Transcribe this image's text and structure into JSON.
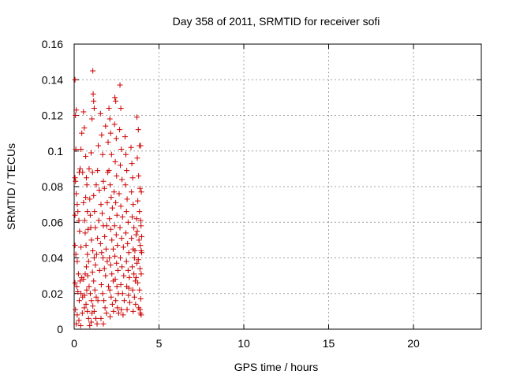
{
  "chart_data": {
    "type": "scatter",
    "title": "Day 358 of 2011, SRMTID for receiver sofi",
    "xlabel": "GPS time / hours",
    "ylabel": "SRMTID / TECUs",
    "xlim": [
      0,
      24
    ],
    "ylim": [
      0,
      0.16
    ],
    "x_ticks": [
      0,
      5,
      10,
      15,
      20
    ],
    "x_tick_labels": [
      "0",
      "5",
      "10",
      "15",
      "20"
    ],
    "y_ticks": [
      0,
      0.02,
      0.04,
      0.06,
      0.08,
      0.1,
      0.12,
      0.14,
      0.16
    ],
    "y_tick_labels": [
      "0",
      "0.02",
      "0.04",
      "0.06",
      "0.08",
      "0.1",
      "0.12",
      "0.14",
      "0.16"
    ],
    "grid": true,
    "marker": "+",
    "series": [
      {
        "color": "#cc0000",
        "points": [
          [
            0.05,
            0.14
          ],
          [
            0.12,
            0.123
          ],
          [
            0.08,
            0.12
          ],
          [
            0.1,
            0.101
          ],
          [
            0.05,
            0.085
          ],
          [
            0.08,
            0.083
          ],
          [
            0.12,
            0.076
          ],
          [
            0.18,
            0.07
          ],
          [
            0.05,
            0.064
          ],
          [
            0.22,
            0.066
          ],
          [
            0.3,
            0.088
          ],
          [
            0.35,
            0.09
          ],
          [
            0.4,
            0.101
          ],
          [
            0.45,
            0.11
          ],
          [
            0.5,
            0.088
          ],
          [
            0.55,
            0.071
          ],
          [
            0.28,
            0.061
          ],
          [
            0.32,
            0.055
          ],
          [
            0.4,
            0.046
          ],
          [
            0.05,
            0.047
          ],
          [
            0.1,
            0.042
          ],
          [
            0.18,
            0.038
          ],
          [
            0.25,
            0.031
          ],
          [
            0.35,
            0.027
          ],
          [
            0.45,
            0.029
          ],
          [
            0.55,
            0.028
          ],
          [
            0.65,
            0.031
          ],
          [
            0.05,
            0.026
          ],
          [
            0.15,
            0.024
          ],
          [
            0.22,
            0.021
          ],
          [
            0.3,
            0.016
          ],
          [
            0.4,
            0.02
          ],
          [
            0.5,
            0.018
          ],
          [
            0.08,
            0.011
          ],
          [
            0.18,
            0.008
          ],
          [
            0.28,
            0.005
          ],
          [
            0.12,
            0.003
          ],
          [
            0.38,
            0.002
          ],
          [
            0.48,
            0.009
          ],
          [
            0.6,
            0.012
          ],
          [
            0.55,
            0.122
          ],
          [
            0.6,
            0.113
          ],
          [
            0.68,
            0.097
          ],
          [
            0.72,
            0.085
          ],
          [
            0.78,
            0.066
          ],
          [
            0.82,
            0.056
          ],
          [
            0.65,
            0.054
          ],
          [
            0.7,
            0.047
          ],
          [
            0.78,
            0.042
          ],
          [
            0.85,
            0.038
          ],
          [
            0.62,
            0.061
          ],
          [
            0.68,
            0.074
          ],
          [
            0.75,
            0.081
          ],
          [
            0.88,
            0.09
          ],
          [
            0.92,
            0.073
          ],
          [
            0.95,
            0.064
          ],
          [
            0.98,
            0.057
          ],
          [
            0.72,
            0.035
          ],
          [
            0.8,
            0.03
          ],
          [
            0.88,
            0.024
          ],
          [
            0.95,
            0.02
          ],
          [
            1.02,
            0.016
          ],
          [
            0.7,
            0.014
          ],
          [
            0.78,
            0.01
          ],
          [
            0.85,
            0.006
          ],
          [
            0.92,
            0.002
          ],
          [
            1.0,
            0.004
          ],
          [
            1.05,
            0.009
          ],
          [
            0.62,
            0.019
          ],
          [
            0.74,
            0.022
          ],
          [
            1.05,
            0.118
          ],
          [
            1.1,
            0.145
          ],
          [
            1.12,
            0.132
          ],
          [
            1.15,
            0.128
          ],
          [
            1.18,
            0.124
          ],
          [
            1.0,
            0.099
          ],
          [
            1.08,
            0.088
          ],
          [
            1.15,
            0.075
          ],
          [
            1.2,
            0.066
          ],
          [
            1.25,
            0.057
          ],
          [
            1.02,
            0.05
          ],
          [
            1.1,
            0.044
          ],
          [
            1.18,
            0.04
          ],
          [
            1.25,
            0.036
          ],
          [
            1.08,
            0.032
          ],
          [
            1.15,
            0.027
          ],
          [
            1.22,
            0.022
          ],
          [
            1.3,
            0.018
          ],
          [
            1.1,
            0.013
          ],
          [
            1.18,
            0.01
          ],
          [
            1.28,
            0.006
          ],
          [
            1.35,
            0.003
          ],
          [
            1.4,
            0.016
          ],
          [
            1.32,
            0.042
          ],
          [
            1.38,
            0.051
          ],
          [
            1.45,
            0.061
          ],
          [
            1.3,
            0.081
          ],
          [
            1.38,
            0.089
          ],
          [
            1.48,
            0.078
          ],
          [
            1.42,
            0.103
          ],
          [
            1.55,
            0.121
          ],
          [
            1.62,
            0.109
          ],
          [
            1.68,
            0.098
          ],
          [
            1.72,
            0.083
          ],
          [
            1.58,
            0.07
          ],
          [
            1.65,
            0.065
          ],
          [
            1.72,
            0.058
          ],
          [
            1.8,
            0.052
          ],
          [
            1.55,
            0.048
          ],
          [
            1.62,
            0.043
          ],
          [
            1.7,
            0.04
          ],
          [
            1.78,
            0.034
          ],
          [
            1.85,
            0.03
          ],
          [
            1.6,
            0.025
          ],
          [
            1.68,
            0.02
          ],
          [
            1.75,
            0.016
          ],
          [
            1.82,
            0.012
          ],
          [
            1.9,
            0.009
          ],
          [
            1.58,
            0.006
          ],
          [
            1.72,
            0.003
          ],
          [
            1.5,
            0.033
          ],
          [
            1.88,
            0.045
          ],
          [
            1.92,
            0.058
          ],
          [
            1.95,
            0.071
          ],
          [
            1.98,
            0.088
          ],
          [
            2.0,
            0.105
          ],
          [
            1.85,
            0.114
          ],
          [
            1.78,
            0.079
          ],
          [
            1.95,
            0.038
          ],
          [
            2.02,
            0.024
          ],
          [
            2.05,
            0.124
          ],
          [
            2.1,
            0.118
          ],
          [
            2.15,
            0.11
          ],
          [
            2.2,
            0.098
          ],
          [
            2.05,
            0.089
          ],
          [
            2.12,
            0.081
          ],
          [
            2.18,
            0.074
          ],
          [
            2.25,
            0.068
          ],
          [
            2.08,
            0.062
          ],
          [
            2.15,
            0.056
          ],
          [
            2.22,
            0.05
          ],
          [
            2.3,
            0.045
          ],
          [
            2.08,
            0.04
          ],
          [
            2.15,
            0.036
          ],
          [
            2.22,
            0.031
          ],
          [
            2.3,
            0.027
          ],
          [
            2.1,
            0.022
          ],
          [
            2.18,
            0.018
          ],
          [
            2.25,
            0.014
          ],
          [
            2.32,
            0.01
          ],
          [
            2.12,
            0.007
          ],
          [
            2.4,
            0.13
          ],
          [
            2.45,
            0.128
          ],
          [
            2.38,
            0.115
          ],
          [
            2.48,
            0.107
          ],
          [
            2.42,
            0.094
          ],
          [
            2.5,
            0.086
          ],
          [
            2.35,
            0.077
          ],
          [
            2.45,
            0.071
          ],
          [
            2.52,
            0.064
          ],
          [
            2.38,
            0.058
          ],
          [
            2.48,
            0.053
          ],
          [
            2.55,
            0.047
          ],
          [
            2.4,
            0.041
          ],
          [
            2.5,
            0.037
          ],
          [
            2.58,
            0.033
          ],
          [
            2.42,
            0.028
          ],
          [
            2.52,
            0.024
          ],
          [
            2.6,
            0.02
          ],
          [
            2.45,
            0.016
          ],
          [
            2.55,
            0.012
          ],
          [
            2.62,
            0.009
          ],
          [
            2.7,
            0.137
          ],
          [
            2.75,
            0.124
          ],
          [
            2.68,
            0.112
          ],
          [
            2.78,
            0.101
          ],
          [
            2.72,
            0.092
          ],
          [
            2.82,
            0.084
          ],
          [
            2.65,
            0.076
          ],
          [
            2.75,
            0.069
          ],
          [
            2.85,
            0.063
          ],
          [
            2.7,
            0.057
          ],
          [
            2.8,
            0.051
          ],
          [
            2.9,
            0.046
          ],
          [
            2.72,
            0.04
          ],
          [
            2.82,
            0.035
          ],
          [
            2.92,
            0.03
          ],
          [
            2.75,
            0.025
          ],
          [
            2.85,
            0.02
          ],
          [
            2.95,
            0.016
          ],
          [
            2.78,
            0.011
          ],
          [
            2.88,
            0.008
          ],
          [
            3.0,
            0.108
          ],
          [
            3.05,
            0.098
          ],
          [
            3.1,
            0.089
          ],
          [
            3.02,
            0.081
          ],
          [
            3.12,
            0.073
          ],
          [
            3.08,
            0.066
          ],
          [
            3.18,
            0.06
          ],
          [
            3.05,
            0.054
          ],
          [
            3.15,
            0.048
          ],
          [
            3.22,
            0.043
          ],
          [
            3.08,
            0.038
          ],
          [
            3.18,
            0.033
          ],
          [
            3.25,
            0.029
          ],
          [
            3.1,
            0.024
          ],
          [
            3.2,
            0.019
          ],
          [
            3.28,
            0.015
          ],
          [
            3.12,
            0.011
          ],
          [
            3.22,
            0.023
          ],
          [
            3.35,
            0.102
          ],
          [
            3.4,
            0.093
          ],
          [
            3.45,
            0.085
          ],
          [
            3.38,
            0.077
          ],
          [
            3.48,
            0.07
          ],
          [
            3.42,
            0.063
          ],
          [
            3.52,
            0.057
          ],
          [
            3.38,
            0.051
          ],
          [
            3.48,
            0.045
          ],
          [
            3.55,
            0.04
          ],
          [
            3.42,
            0.035
          ],
          [
            3.52,
            0.031
          ],
          [
            3.6,
            0.027
          ],
          [
            3.45,
            0.022
          ],
          [
            3.55,
            0.018
          ],
          [
            3.62,
            0.014
          ],
          [
            3.48,
            0.01
          ],
          [
            3.58,
            0.044
          ],
          [
            3.65,
            0.053
          ],
          [
            3.68,
            0.062
          ],
          [
            3.7,
            0.119
          ],
          [
            3.78,
            0.112
          ],
          [
            3.85,
            0.103
          ],
          [
            3.92,
            0.103
          ],
          [
            3.72,
            0.096
          ],
          [
            3.8,
            0.086
          ],
          [
            3.88,
            0.079
          ],
          [
            3.75,
            0.072
          ],
          [
            3.85,
            0.066
          ],
          [
            3.92,
            0.061
          ],
          [
            3.72,
            0.055
          ],
          [
            3.82,
            0.05
          ],
          [
            3.9,
            0.047
          ],
          [
            3.95,
            0.044
          ],
          [
            3.78,
            0.039
          ],
          [
            3.88,
            0.034
          ],
          [
            3.95,
            0.031
          ],
          [
            3.75,
            0.026
          ],
          [
            3.85,
            0.022
          ],
          [
            3.92,
            0.017
          ],
          [
            3.8,
            0.012
          ],
          [
            3.9,
            0.009
          ],
          [
            3.95,
            0.008
          ],
          [
            3.88,
            0.011
          ],
          [
            3.98,
            0.043
          ],
          [
            3.96,
            0.077
          ],
          [
            3.94,
            0.058
          ],
          [
            3.98,
            0.052
          ],
          [
            3.65,
            0.029
          ],
          [
            3.7,
            0.037
          ]
        ]
      }
    ]
  }
}
